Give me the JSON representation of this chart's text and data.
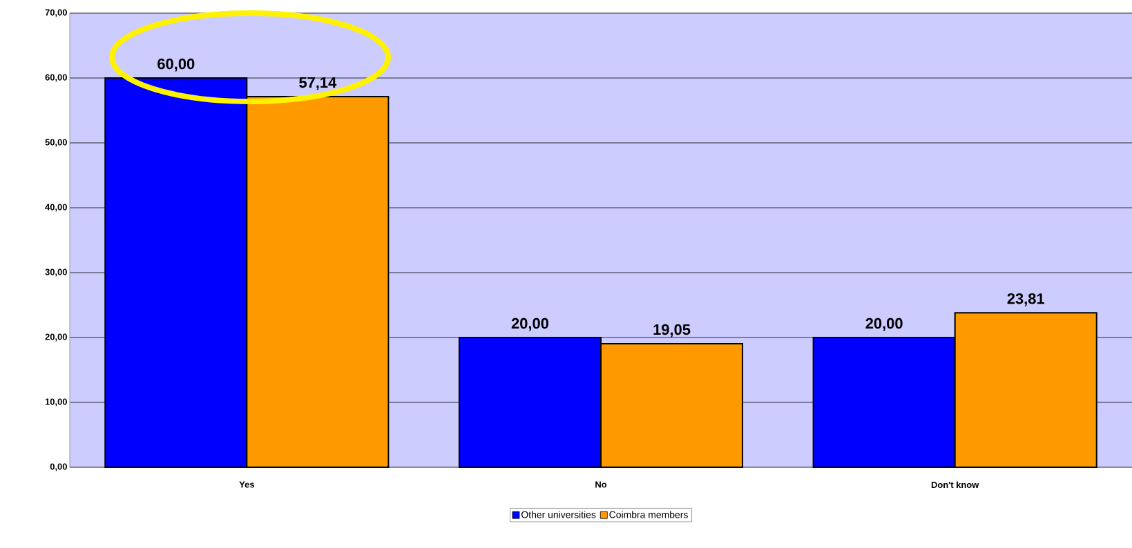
{
  "chart_data": {
    "type": "bar",
    "categories": [
      "Yes",
      "No",
      "Don't know"
    ],
    "series": [
      {
        "name": "Other universities",
        "color": "#0000ff",
        "values": [
          60.0,
          20.0,
          20.0
        ],
        "value_labels": [
          "60,00",
          "20,00",
          "20,00"
        ]
      },
      {
        "name": "Coimbra members",
        "color": "#ff9900",
        "values": [
          57.14,
          19.05,
          23.81
        ],
        "value_labels": [
          "57,14",
          "19,05",
          "23,81"
        ]
      }
    ],
    "ylim": [
      0,
      70
    ],
    "yticks": [
      {
        "value": 0,
        "label": "0,00"
      },
      {
        "value": 10,
        "label": "10,00"
      },
      {
        "value": 20,
        "label": "20,00"
      },
      {
        "value": 30,
        "label": "30,00"
      },
      {
        "value": 40,
        "label": "40,00"
      },
      {
        "value": 50,
        "label": "50,00"
      },
      {
        "value": 60,
        "label": "60,00"
      },
      {
        "value": 70,
        "label": "70,00"
      }
    ],
    "grid": "y",
    "legend": "bottom"
  }
}
